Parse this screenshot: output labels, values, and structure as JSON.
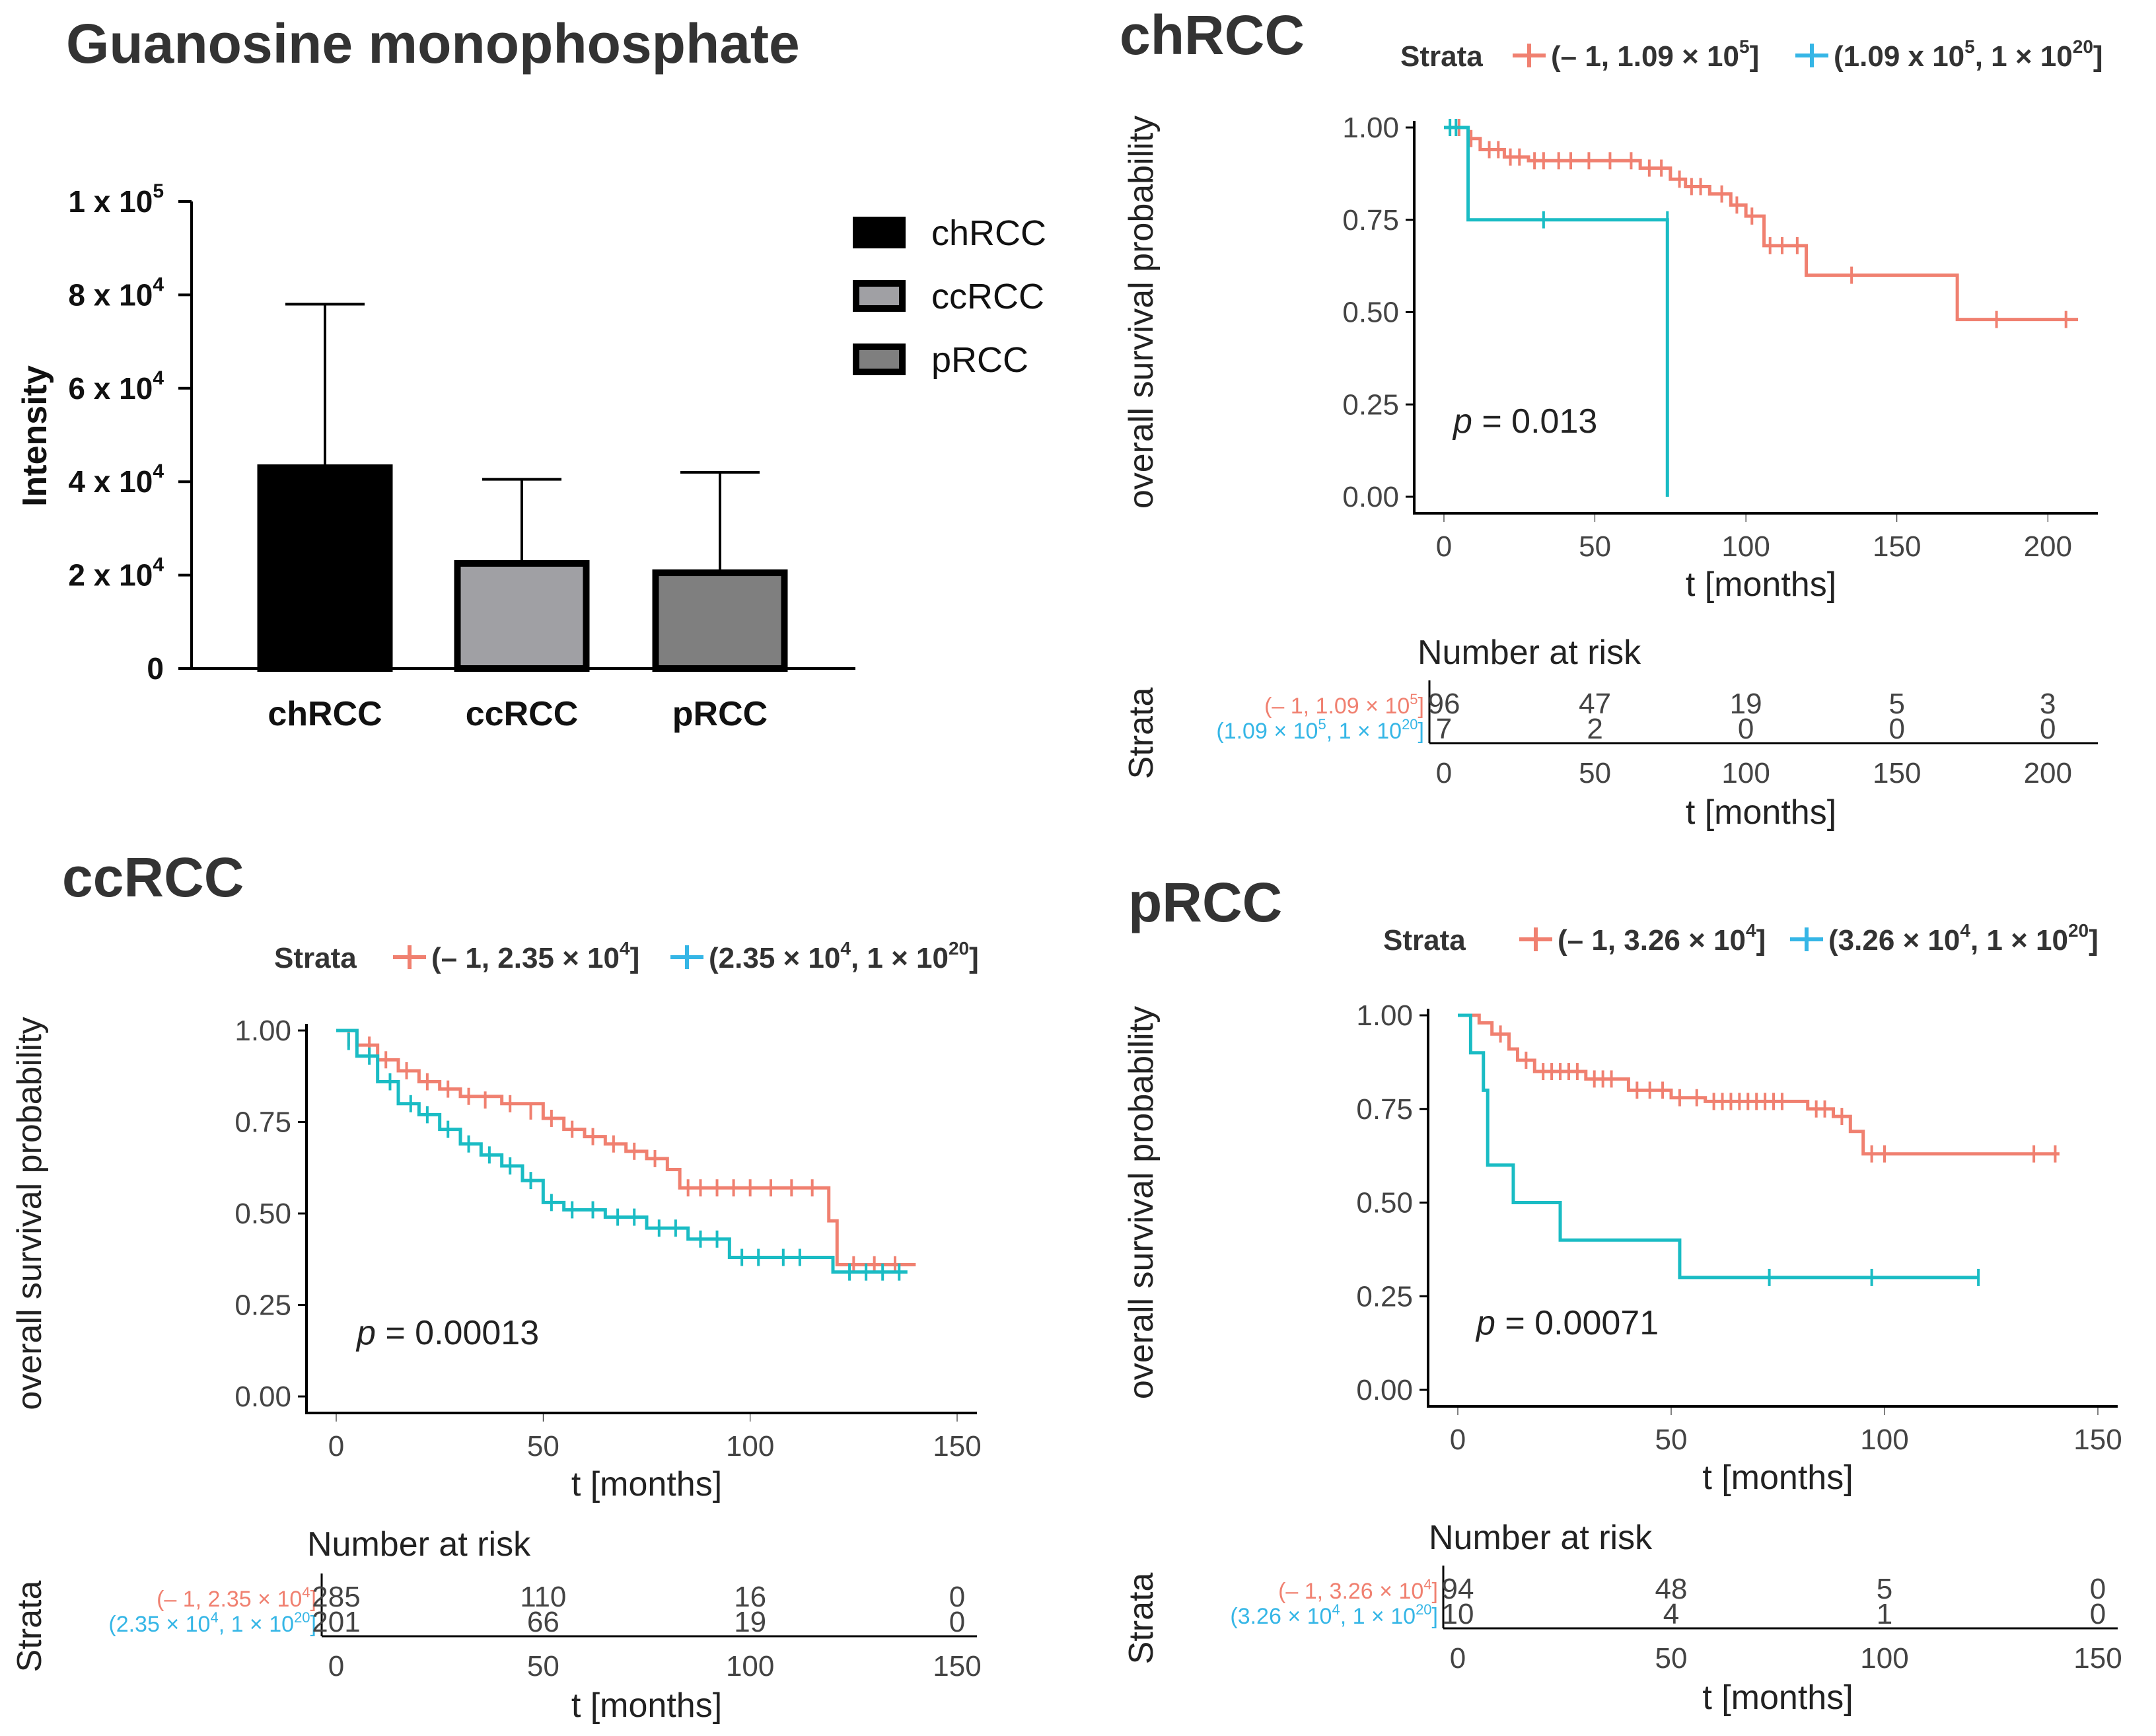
{
  "colors": {
    "group_low": "#F08070",
    "group_high": "#1ABCC4",
    "group_high_label": "#35B6E6",
    "chRCC": "#000000",
    "ccRCC": "#A0A0A4",
    "pRCC": "#7F7F7F"
  },
  "chart_data": [
    {
      "type": "bar",
      "title": "Guanosine monophosphate",
      "categories": [
        "chRCC",
        "ccRCC",
        "pRCC"
      ],
      "values": [
        43000,
        22500,
        20500
      ],
      "errors_upper": [
        78000,
        40500,
        42000
      ],
      "ylabel": "Intensity",
      "ylim": [
        0,
        100000
      ],
      "ytick_labels": [
        {
          "value": 0,
          "base": "0",
          "exp": ""
        },
        {
          "value": 20000,
          "base": "2 x 10",
          "exp": "4"
        },
        {
          "value": 40000,
          "base": "4 x 10",
          "exp": "4"
        },
        {
          "value": 60000,
          "base": "6 x 10",
          "exp": "4"
        },
        {
          "value": 80000,
          "base": "8 x 10",
          "exp": "4"
        },
        {
          "value": 100000,
          "base": "1 x 10",
          "exp": "5"
        }
      ],
      "legend": [
        "chRCC",
        "ccRCC",
        "pRCC"
      ]
    },
    {
      "type": "line",
      "id": "chRCC_km",
      "title": "chRCC",
      "legend_title": "Strata",
      "strata": [
        {
          "base": "(– 1, 1.09 × 10",
          "exp": "5",
          "tail": "]"
        },
        {
          "base": "(1.09 x 10",
          "exp": "5",
          "mid": ", 1 × 10",
          "exp2": "20",
          "tail": "]"
        }
      ],
      "xlabel": "t [months]",
      "ylabel": "overall survival probability",
      "xlim": [
        0,
        210
      ],
      "ylim": [
        0,
        1
      ],
      "xticks": [
        0,
        50,
        100,
        150,
        200
      ],
      "yticks": [
        "0.00",
        "0.25",
        "0.50",
        "0.75",
        "1.00"
      ],
      "pvalue": "0.013",
      "series": [
        {
          "name": "low",
          "steps": [
            [
              0,
              1.0
            ],
            [
              8,
              0.97
            ],
            [
              12,
              0.94
            ],
            [
              20,
              0.92
            ],
            [
              28,
              0.91
            ],
            [
              65,
              0.89
            ],
            [
              75,
              0.86
            ],
            [
              80,
              0.84
            ],
            [
              88,
              0.82
            ],
            [
              95,
              0.79
            ],
            [
              100,
              0.76
            ],
            [
              106,
              0.68
            ],
            [
              120,
              0.6
            ],
            [
              170,
              0.48
            ],
            [
              210,
              0.48
            ]
          ],
          "censors": [
            [
              5,
              1.0
            ],
            [
              9,
              0.97
            ],
            [
              15,
              0.94
            ],
            [
              18,
              0.94
            ],
            [
              22,
              0.92
            ],
            [
              25,
              0.92
            ],
            [
              30,
              0.91
            ],
            [
              33,
              0.91
            ],
            [
              38,
              0.91
            ],
            [
              42,
              0.91
            ],
            [
              48,
              0.91
            ],
            [
              55,
              0.91
            ],
            [
              62,
              0.91
            ],
            [
              68,
              0.89
            ],
            [
              72,
              0.89
            ],
            [
              78,
              0.86
            ],
            [
              82,
              0.84
            ],
            [
              85,
              0.84
            ],
            [
              92,
              0.82
            ],
            [
              97,
              0.79
            ],
            [
              102,
              0.76
            ],
            [
              108,
              0.68
            ],
            [
              112,
              0.68
            ],
            [
              117,
              0.68
            ],
            [
              135,
              0.6
            ],
            [
              183,
              0.48
            ],
            [
              206,
              0.48
            ]
          ]
        },
        {
          "name": "high",
          "steps": [
            [
              0,
              1.0
            ],
            [
              8,
              0.75
            ],
            [
              74,
              0.75
            ],
            [
              74,
              0.0
            ]
          ],
          "censors": [
            [
              2,
              1.0
            ],
            [
              4,
              1.0
            ],
            [
              33,
              0.75
            ],
            [
              74,
              0.75
            ]
          ]
        }
      ],
      "risk_table": {
        "title": "Number at risk",
        "ylabel": "Strata",
        "rows": [
          {
            "label_base": "(– 1, 1.09 × 10",
            "label_exp": "5",
            "label_tail": "]",
            "counts": [
              "96",
              "47",
              "19",
              "5",
              "3"
            ]
          },
          {
            "label_base": "(1.09 × 10",
            "label_exp": "5",
            "label_mid": ", 1 × 10",
            "label_exp2": "20",
            "label_tail": "]",
            "counts": [
              "7",
              "2",
              "0",
              "0",
              "0"
            ]
          }
        ]
      }
    },
    {
      "type": "line",
      "id": "ccRCC_km",
      "title": "ccRCC",
      "legend_title": "Strata",
      "strata": [
        {
          "base": "(– 1, 2.35 × 10",
          "exp": "4",
          "tail": "]"
        },
        {
          "base": "(2.35 × 10",
          "exp": "4",
          "mid": ", 1 × 10",
          "exp2": "20",
          "tail": "]"
        }
      ],
      "xlabel": "t [months]",
      "ylabel": "overall survival probability",
      "xlim": [
        0,
        150
      ],
      "ylim": [
        0,
        1
      ],
      "xticks": [
        0,
        50,
        100,
        150
      ],
      "yticks": [
        "0.00",
        "0.25",
        "0.50",
        "0.75",
        "1.00"
      ],
      "pvalue": "0.00013",
      "series": [
        {
          "name": "low",
          "steps": [
            [
              0,
              1.0
            ],
            [
              5,
              0.96
            ],
            [
              10,
              0.92
            ],
            [
              15,
              0.89
            ],
            [
              20,
              0.86
            ],
            [
              25,
              0.84
            ],
            [
              30,
              0.82
            ],
            [
              40,
              0.8
            ],
            [
              50,
              0.76
            ],
            [
              55,
              0.73
            ],
            [
              60,
              0.71
            ],
            [
              65,
              0.69
            ],
            [
              70,
              0.67
            ],
            [
              75,
              0.65
            ],
            [
              80,
              0.62
            ],
            [
              83,
              0.57
            ],
            [
              118,
              0.57
            ],
            [
              119,
              0.48
            ],
            [
              121,
              0.36
            ],
            [
              140,
              0.36
            ]
          ],
          "censors": [
            [
              3,
              0.98
            ],
            [
              8,
              0.96
            ],
            [
              12,
              0.92
            ],
            [
              17,
              0.89
            ],
            [
              22,
              0.86
            ],
            [
              27,
              0.84
            ],
            [
              32,
              0.82
            ],
            [
              36,
              0.81
            ],
            [
              42,
              0.8
            ],
            [
              47,
              0.78
            ],
            [
              52,
              0.76
            ],
            [
              57,
              0.73
            ],
            [
              62,
              0.71
            ],
            [
              67,
              0.69
            ],
            [
              72,
              0.67
            ],
            [
              77,
              0.65
            ],
            [
              85,
              0.57
            ],
            [
              88,
              0.57
            ],
            [
              92,
              0.57
            ],
            [
              96,
              0.57
            ],
            [
              100,
              0.57
            ],
            [
              105,
              0.57
            ],
            [
              110,
              0.57
            ],
            [
              115,
              0.57
            ],
            [
              125,
              0.36
            ],
            [
              130,
              0.36
            ],
            [
              135,
              0.36
            ]
          ]
        },
        {
          "name": "high",
          "steps": [
            [
              0,
              1.0
            ],
            [
              5,
              0.93
            ],
            [
              10,
              0.86
            ],
            [
              15,
              0.8
            ],
            [
              20,
              0.77
            ],
            [
              25,
              0.73
            ],
            [
              30,
              0.69
            ],
            [
              35,
              0.66
            ],
            [
              40,
              0.63
            ],
            [
              45,
              0.59
            ],
            [
              50,
              0.53
            ],
            [
              55,
              0.51
            ],
            [
              65,
              0.49
            ],
            [
              75,
              0.46
            ],
            [
              85,
              0.43
            ],
            [
              95,
              0.38
            ],
            [
              118,
              0.38
            ],
            [
              120,
              0.34
            ],
            [
              138,
              0.34
            ]
          ],
          "censors": [
            [
              3,
              0.97
            ],
            [
              8,
              0.93
            ],
            [
              13,
              0.86
            ],
            [
              18,
              0.8
            ],
            [
              22,
              0.77
            ],
            [
              27,
              0.73
            ],
            [
              32,
              0.69
            ],
            [
              37,
              0.66
            ],
            [
              42,
              0.63
            ],
            [
              47,
              0.59
            ],
            [
              52,
              0.53
            ],
            [
              57,
              0.51
            ],
            [
              62,
              0.51
            ],
            [
              68,
              0.49
            ],
            [
              72,
              0.49
            ],
            [
              78,
              0.46
            ],
            [
              82,
              0.46
            ],
            [
              88,
              0.43
            ],
            [
              92,
              0.43
            ],
            [
              98,
              0.38
            ],
            [
              102,
              0.38
            ],
            [
              108,
              0.38
            ],
            [
              112,
              0.38
            ],
            [
              124,
              0.34
            ],
            [
              128,
              0.34
            ],
            [
              132,
              0.34
            ],
            [
              136,
              0.34
            ]
          ]
        }
      ],
      "risk_table": {
        "title": "Number at risk",
        "ylabel": "Strata",
        "rows": [
          {
            "label_base": "(– 1, 2.35 × 10",
            "label_exp": "4",
            "label_tail": "]",
            "counts": [
              "285",
              "110",
              "16",
              "0"
            ]
          },
          {
            "label_base": "(2.35 × 10",
            "label_exp": "4",
            "label_mid": ", 1 × 10",
            "label_exp2": "20",
            "label_tail": "]",
            "counts": [
              "201",
              "66",
              "19",
              "0"
            ]
          }
        ]
      }
    },
    {
      "type": "line",
      "id": "pRCC_km",
      "title": "pRCC",
      "legend_title": "Strata",
      "strata": [
        {
          "base": "(– 1, 3.26 × 10",
          "exp": "4",
          "tail": "]"
        },
        {
          "base": "(3.26 × 10",
          "exp": "4",
          "mid": ", 1 × 10",
          "exp2": "20",
          "tail": "]"
        }
      ],
      "xlabel": "t [months]",
      "ylabel": "overall survival probability",
      "xlim": [
        0,
        150
      ],
      "ylim": [
        0,
        1
      ],
      "xticks": [
        0,
        50,
        100,
        150
      ],
      "yticks": [
        "0.00",
        "0.25",
        "0.50",
        "0.75",
        "1.00"
      ],
      "pvalue": "0.00071",
      "series": [
        {
          "name": "low",
          "steps": [
            [
              0,
              1.0
            ],
            [
              5,
              0.98
            ],
            [
              8,
              0.95
            ],
            [
              12,
              0.91
            ],
            [
              14,
              0.88
            ],
            [
              18,
              0.85
            ],
            [
              30,
              0.83
            ],
            [
              40,
              0.8
            ],
            [
              50,
              0.78
            ],
            [
              58,
              0.77
            ],
            [
              82,
              0.75
            ],
            [
              88,
              0.73
            ],
            [
              92,
              0.69
            ],
            [
              95,
              0.63
            ],
            [
              141,
              0.63
            ]
          ],
          "censors": [
            [
              10,
              0.95
            ],
            [
              16,
              0.88
            ],
            [
              20,
              0.85
            ],
            [
              22,
              0.85
            ],
            [
              24,
              0.85
            ],
            [
              26,
              0.85
            ],
            [
              28,
              0.85
            ],
            [
              32,
              0.83
            ],
            [
              34,
              0.83
            ],
            [
              36,
              0.83
            ],
            [
              42,
              0.8
            ],
            [
              45,
              0.8
            ],
            [
              48,
              0.8
            ],
            [
              52,
              0.78
            ],
            [
              56,
              0.78
            ],
            [
              60,
              0.77
            ],
            [
              62,
              0.77
            ],
            [
              64,
              0.77
            ],
            [
              66,
              0.77
            ],
            [
              68,
              0.77
            ],
            [
              70,
              0.77
            ],
            [
              72,
              0.77
            ],
            [
              74,
              0.77
            ],
            [
              76,
              0.77
            ],
            [
              84,
              0.75
            ],
            [
              86,
              0.75
            ],
            [
              90,
              0.73
            ],
            [
              97,
              0.63
            ],
            [
              100,
              0.63
            ],
            [
              135,
              0.63
            ],
            [
              140,
              0.63
            ]
          ]
        },
        {
          "name": "high",
          "steps": [
            [
              0,
              1.0
            ],
            [
              3,
              0.9
            ],
            [
              6,
              0.8
            ],
            [
              7,
              0.7
            ],
            [
              7,
              0.6
            ],
            [
              13,
              0.6
            ],
            [
              13,
              0.5
            ],
            [
              24,
              0.5
            ],
            [
              24,
              0.4
            ],
            [
              52,
              0.4
            ],
            [
              52,
              0.3
            ],
            [
              122,
              0.3
            ]
          ],
          "censors": [
            [
              73,
              0.3
            ],
            [
              97,
              0.3
            ],
            [
              122,
              0.3
            ]
          ]
        }
      ],
      "risk_table": {
        "title": "Number at risk",
        "ylabel": "Strata",
        "rows": [
          {
            "label_base": "(– 1, 3.26 × 10",
            "label_exp": "4",
            "label_tail": "]",
            "counts": [
              "94",
              "48",
              "5",
              "0"
            ]
          },
          {
            "label_base": "(3.26 × 10",
            "label_exp": "4",
            "label_mid": ", 1 × 10",
            "label_exp2": "20",
            "label_tail": "]",
            "counts": [
              "10",
              "4",
              "1",
              "0"
            ]
          }
        ]
      }
    }
  ]
}
